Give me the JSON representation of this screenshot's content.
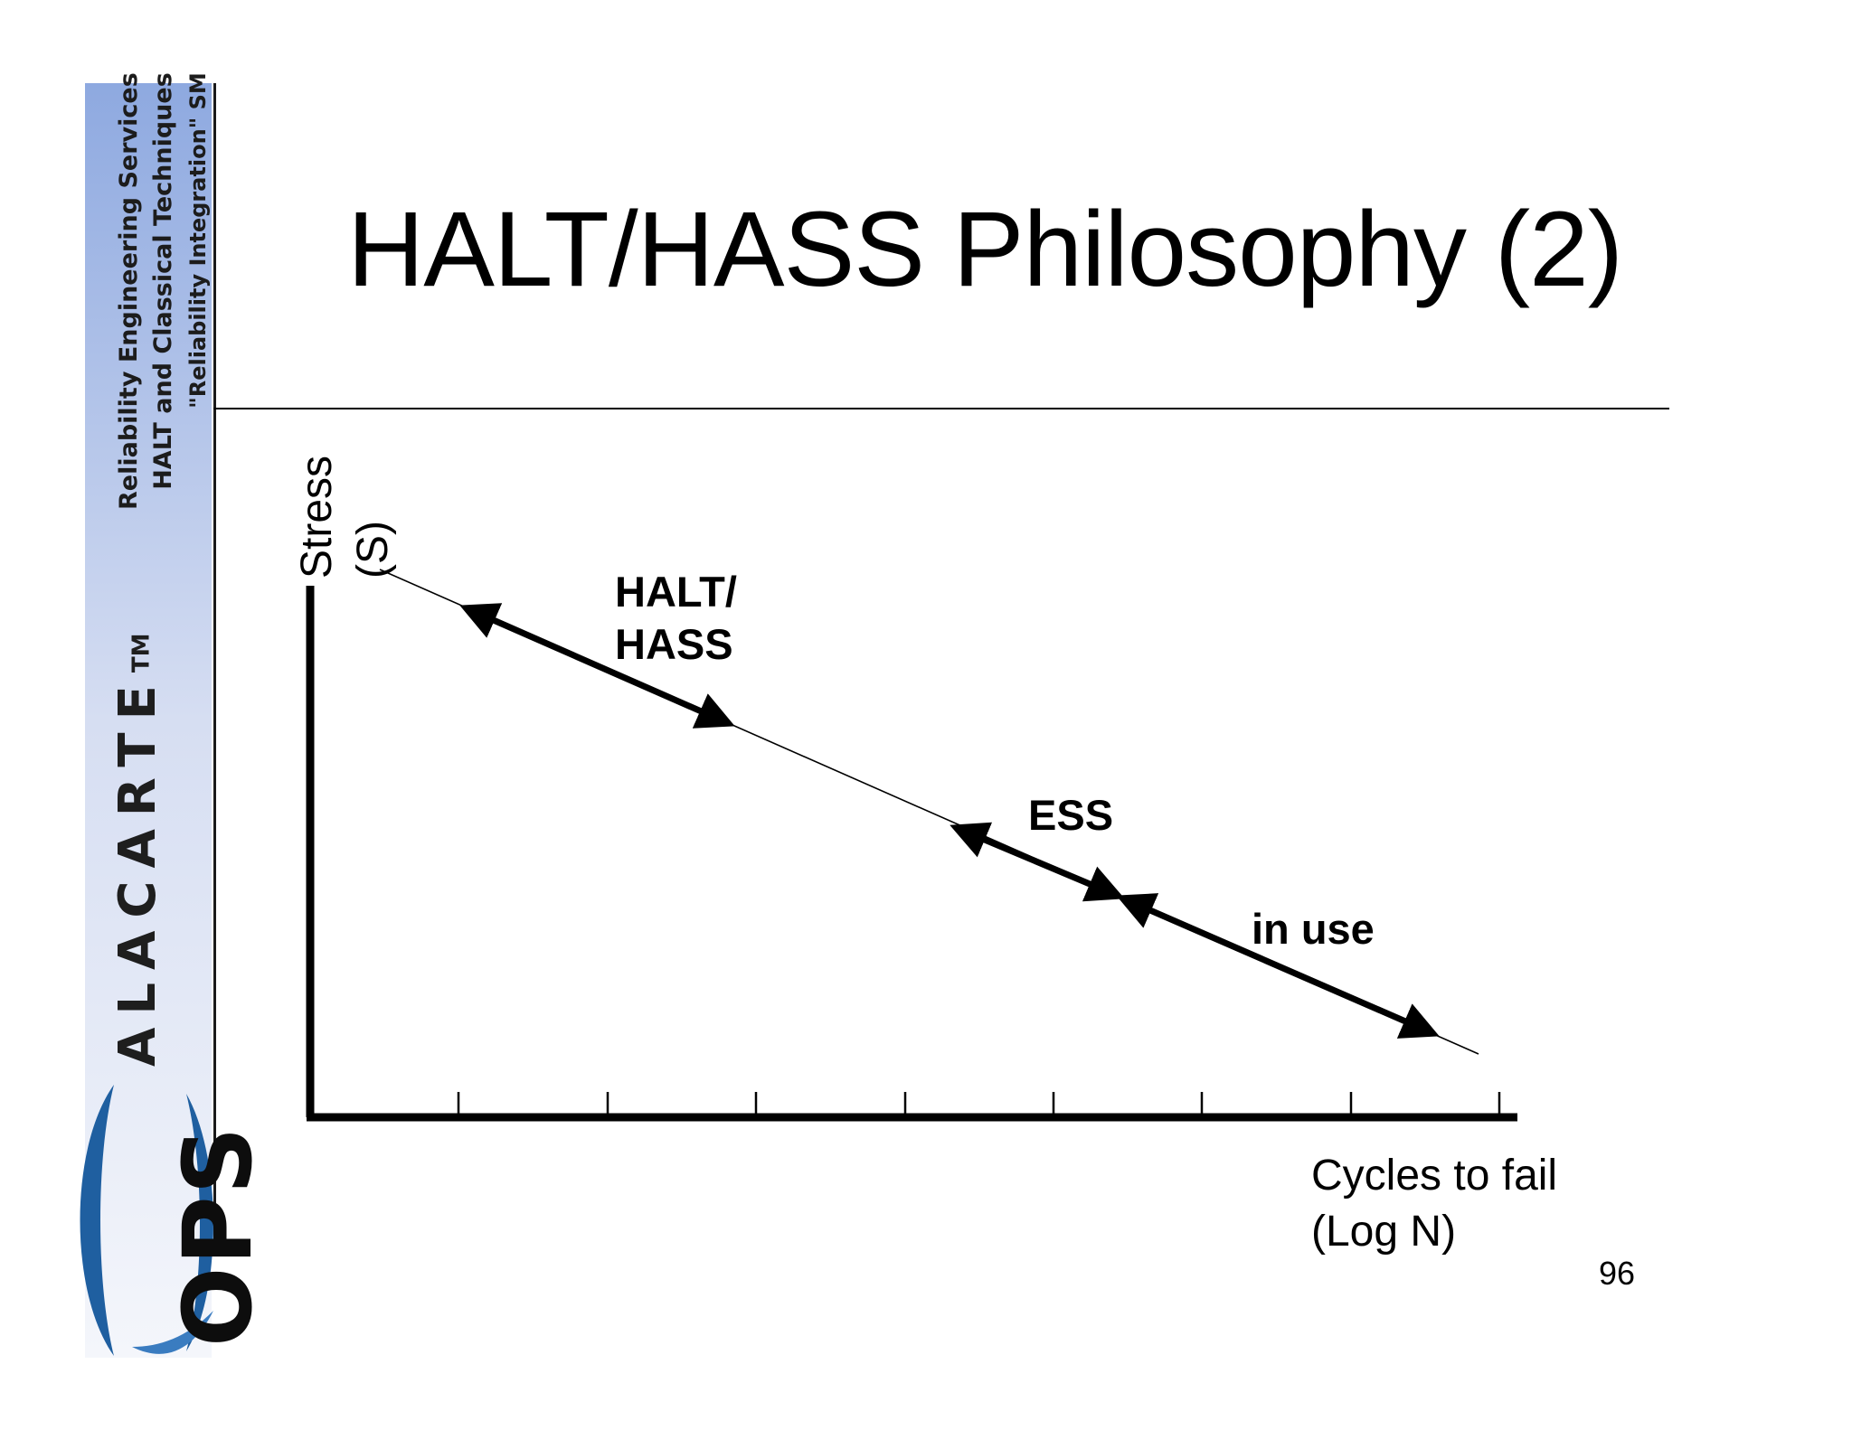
{
  "sidebar": {
    "services_lines": [
      "Reliability Engineering Services",
      "HALT and Classical Techniques",
      "\"Reliability Integration\" SM"
    ],
    "brand_name": "ALACARTE",
    "brand_mark": "TM",
    "logo_text": "OPS",
    "colors": {
      "band_top": "#dfe6f5",
      "band_bottom": "#8fa8de",
      "logo_blue": "#1f5fa0"
    }
  },
  "slide": {
    "title": "HALT/HASS Philosophy (2)",
    "page_number": "96"
  },
  "diagram": {
    "y_axis_label_line1": "Stress",
    "y_axis_label_line2": "(S)",
    "x_axis_label_line1": "Cycles to fail",
    "x_axis_label_line2": "(Log N)",
    "tick_count": 8,
    "segments": [
      {
        "label_line1": "HALT/",
        "label_line2": "HASS"
      },
      {
        "label_line1": "ESS",
        "label_line2": ""
      },
      {
        "label_line1": "in use",
        "label_line2": ""
      }
    ]
  }
}
